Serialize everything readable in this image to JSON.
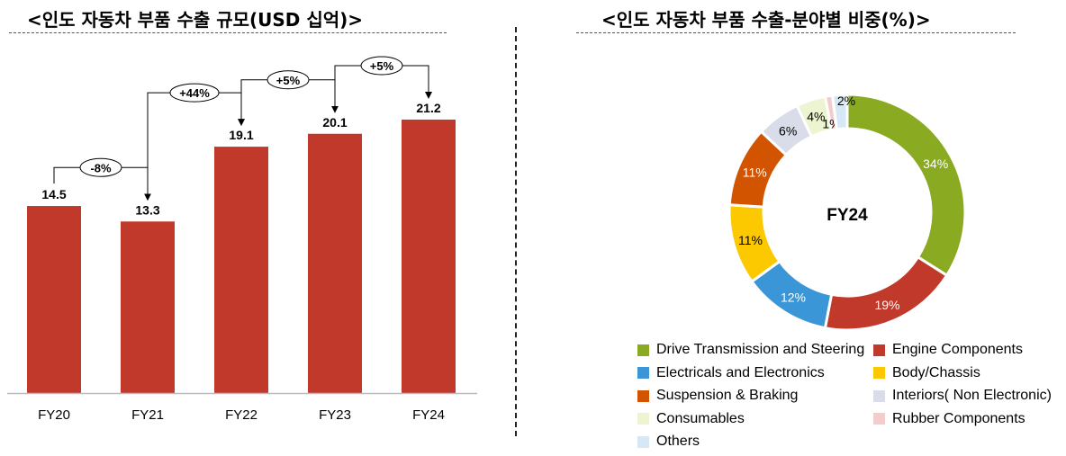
{
  "left_title": "<인도 자동차 부품 수출 규모(USD 십억)>",
  "right_title": "<인도 자동차 부품 수출-분야별 비중(%)>",
  "chart_data": [
    {
      "type": "bar",
      "title": "<인도 자동차 부품 수출 규모(USD 십억)>",
      "categories": [
        "FY20",
        "FY21",
        "FY22",
        "FY23",
        "FY24"
      ],
      "values": [
        14.5,
        13.3,
        19.1,
        20.1,
        21.2
      ],
      "value_labels": [
        "14.5",
        "13.3",
        "19.1",
        "20.1",
        "21.2"
      ],
      "bar_color": "#c0392b",
      "ylim": [
        0,
        23.5
      ],
      "growth_annotations": [
        {
          "from": 0,
          "to": 1,
          "label": "-8%"
        },
        {
          "from": 1,
          "to": 2,
          "label": "+44%"
        },
        {
          "from": 2,
          "to": 3,
          "label": "+5%"
        },
        {
          "from": 3,
          "to": 4,
          "label": "+5%"
        }
      ],
      "grid": false
    },
    {
      "type": "pie",
      "donut": true,
      "title": "<인도 자동차 부품 수출-분야별 비중(%)>",
      "center_label": "FY24",
      "slices": [
        {
          "name": "Drive Transmission and Steering",
          "value": 34,
          "label": "34%",
          "color": "#8aaa21",
          "label_color": "#ffffff"
        },
        {
          "name": "Engine Components",
          "value": 19,
          "label": "19%",
          "color": "#c0392b",
          "label_color": "#ffffff"
        },
        {
          "name": "Electricals and Electronics",
          "value": 12,
          "label": "12%",
          "color": "#3a96d6",
          "label_color": "#ffffff"
        },
        {
          "name": "Body/Chassis",
          "value": 11,
          "label": "11%",
          "color": "#fcc800",
          "label_color": "#000000"
        },
        {
          "name": "Suspension & Braking",
          "value": 11,
          "label": "11%",
          "color": "#d35400",
          "label_color": "#ffffff"
        },
        {
          "name": "Interiors( Non Electronic)",
          "value": 6,
          "label": "6%",
          "color": "#d9dde9",
          "label_color": "#000000"
        },
        {
          "name": "Consumables",
          "value": 4,
          "label": "4%",
          "color": "#ecf4d0",
          "label_color": "#000000"
        },
        {
          "name": "Rubber Components",
          "value": 1,
          "label": "1%",
          "color": "#f4cccc",
          "label_color": "#000000"
        },
        {
          "name": "Others",
          "value": 2,
          "label": "2%",
          "color": "#d6e8f5",
          "label_color": "#000000"
        }
      ],
      "legend_position": "bottom"
    }
  ]
}
